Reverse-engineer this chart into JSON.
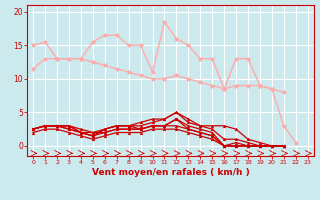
{
  "bg_color": "#cce9ee",
  "grid_color": "#ffffff",
  "xlabel": "Vent moyen/en rafales ( km/h )",
  "xlabel_color": "#cc0000",
  "tick_color": "#cc0000",
  "xlim": [
    -0.5,
    23.5
  ],
  "ylim": [
    -1.5,
    21
  ],
  "yticks": [
    0,
    5,
    10,
    15,
    20
  ],
  "xticks": [
    0,
    1,
    2,
    3,
    4,
    5,
    6,
    7,
    8,
    9,
    10,
    11,
    12,
    13,
    14,
    15,
    16,
    17,
    18,
    19,
    20,
    21,
    22,
    23
  ],
  "series": [
    {
      "x": [
        0,
        1,
        2,
        3,
        4,
        5,
        6,
        7,
        8,
        9,
        10,
        11,
        12,
        13,
        14,
        15,
        16,
        17,
        18,
        19,
        20,
        21,
        22
      ],
      "y": [
        15,
        15.5,
        13,
        13,
        13,
        15.5,
        16.5,
        16.5,
        15,
        15,
        11,
        18.5,
        16,
        15,
        13,
        13,
        8.5,
        13,
        13,
        9,
        8.5,
        3,
        0.5
      ],
      "color": "#ffaaaa",
      "lw": 1.0,
      "marker": "o",
      "ms": 2.5
    },
    {
      "x": [
        0,
        1,
        2,
        3,
        4,
        5,
        6,
        7,
        8,
        9,
        10,
        11,
        12,
        13,
        14,
        15,
        16,
        17,
        18,
        19,
        20,
        21
      ],
      "y": [
        11.5,
        13,
        13,
        13,
        13,
        12.5,
        12,
        11.5,
        11,
        10.5,
        10,
        10,
        10.5,
        10,
        9.5,
        9,
        8.5,
        9,
        9,
        9,
        8.5,
        8
      ],
      "color": "#ffaaaa",
      "lw": 1.0,
      "marker": "o",
      "ms": 2.5
    },
    {
      "x": [
        0,
        1,
        2,
        3,
        4,
        5,
        6,
        7,
        8,
        9,
        10,
        11,
        12,
        13,
        14,
        15,
        16,
        17,
        18,
        19,
        20,
        21
      ],
      "y": [
        2.5,
        3,
        3,
        3,
        2.5,
        2,
        2.5,
        3,
        3,
        3.5,
        4,
        4,
        5,
        4,
        3,
        3,
        3,
        2.5,
        1,
        0.5,
        0,
        0
      ],
      "color": "#cc0000",
      "lw": 0.9,
      "marker": "^",
      "ms": 2.0
    },
    {
      "x": [
        0,
        1,
        2,
        3,
        4,
        5,
        6,
        7,
        8,
        9,
        10,
        11,
        12,
        13,
        14,
        15,
        16,
        17,
        18,
        19,
        20,
        21
      ],
      "y": [
        2.5,
        3,
        3,
        3,
        2,
        1.5,
        2.5,
        3,
        3,
        3,
        3.5,
        4,
        5,
        3.5,
        3,
        2.5,
        1,
        1,
        0.5,
        0,
        0,
        0
      ],
      "color": "#cc0000",
      "lw": 0.9,
      "marker": "^",
      "ms": 2.0
    },
    {
      "x": [
        0,
        1,
        2,
        3,
        4,
        5,
        6,
        7,
        8,
        9,
        10,
        11,
        12,
        13,
        14,
        15,
        16,
        17,
        18,
        19,
        20,
        21
      ],
      "y": [
        2.5,
        3,
        3,
        3,
        2,
        1.5,
        2.5,
        3,
        3,
        2.5,
        3,
        3,
        4,
        3,
        2.5,
        2,
        0,
        0.5,
        0,
        0,
        0,
        0
      ],
      "color": "#cc0000",
      "lw": 0.9,
      "marker": "^",
      "ms": 2.0
    },
    {
      "x": [
        0,
        1,
        2,
        3,
        4,
        5,
        6,
        7,
        8,
        9,
        10,
        11,
        12,
        13,
        14,
        15,
        16,
        17,
        18,
        19,
        20,
        21
      ],
      "y": [
        2.5,
        3,
        3,
        2.5,
        2,
        1.5,
        2,
        2.5,
        2.5,
        2.5,
        3,
        3,
        3,
        2.5,
        2,
        1.5,
        0,
        0,
        0,
        0,
        0,
        0
      ],
      "color": "#cc0000",
      "lw": 0.9,
      "marker": "^",
      "ms": 2.0
    },
    {
      "x": [
        0,
        1,
        2,
        3,
        4,
        5,
        6,
        7,
        8,
        9,
        10,
        11,
        12,
        13,
        14,
        15,
        16,
        17,
        18,
        19,
        20,
        21
      ],
      "y": [
        2,
        2.5,
        2.5,
        2,
        1.5,
        1,
        1.5,
        2,
        2,
        2,
        2.5,
        2.5,
        2.5,
        2,
        1.5,
        1,
        0,
        0,
        0,
        0,
        0,
        0
      ],
      "color": "#cc0000",
      "lw": 0.9,
      "marker": "^",
      "ms": 2.0
    },
    {
      "x": [
        0,
        1,
        2,
        3,
        4,
        5,
        6,
        7,
        8,
        9,
        10,
        11,
        12,
        13,
        14,
        15,
        16,
        17,
        18,
        19,
        20,
        21
      ],
      "y": [
        2.5,
        3,
        3,
        2.5,
        2,
        2,
        2,
        2.5,
        2.5,
        2.5,
        3,
        3,
        4,
        2.5,
        2,
        1.5,
        0,
        0,
        0,
        0,
        0,
        0
      ],
      "color": "#cc0000",
      "lw": 0.9,
      "marker": "v",
      "ms": 2.0
    }
  ]
}
